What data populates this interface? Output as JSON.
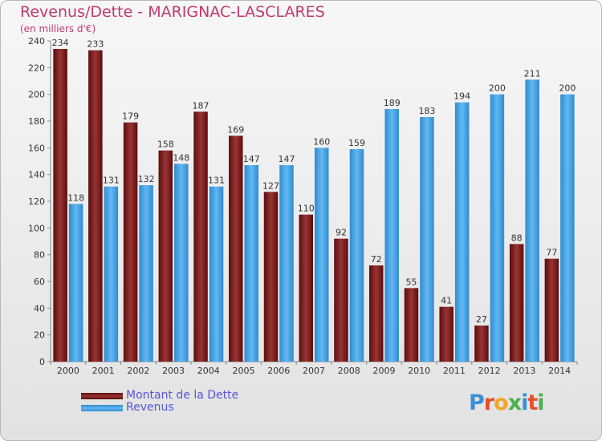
{
  "header": {
    "title": "Revenus/Dette - MARIGNAC-LASCLARES",
    "subtitle": "(en milliers d'€)"
  },
  "legend": {
    "dette_label": "Montant de la Dette",
    "revenus_label": "Revenus"
  },
  "logo": {
    "text": "Proxiti",
    "colors": [
      "#3a8fd8",
      "#e5502f",
      "#f2a526",
      "#4caf50",
      "#3a8fd8",
      "#e5502f",
      "#4caf50"
    ]
  },
  "colors": {
    "dette": "#7a1e1e",
    "revenus": "#4aa8e8",
    "title": "#c0396e"
  },
  "chart_data": {
    "type": "bar",
    "title": "Revenus/Dette - MARIGNAC-LASCLARES",
    "subtitle": "(en milliers d'€)",
    "categories": [
      "2000",
      "2001",
      "2002",
      "2003",
      "2004",
      "2005",
      "2006",
      "2007",
      "2008",
      "2009",
      "2010",
      "2011",
      "2012",
      "2013",
      "2014"
    ],
    "series": [
      {
        "name": "Montant de la Dette",
        "values": [
          234,
          233,
          179,
          158,
          187,
          169,
          127,
          110,
          92,
          72,
          55,
          41,
          27,
          88,
          77
        ]
      },
      {
        "name": "Revenus",
        "values": [
          118,
          131,
          132,
          148,
          131,
          147,
          147,
          160,
          159,
          189,
          183,
          194,
          200,
          211,
          200
        ]
      }
    ],
    "ylim": [
      0,
      240
    ],
    "yticks": [
      0,
      20,
      40,
      60,
      80,
      100,
      120,
      140,
      160,
      180,
      200,
      220,
      240
    ],
    "grid": false,
    "legend_position": "bottom-left"
  }
}
